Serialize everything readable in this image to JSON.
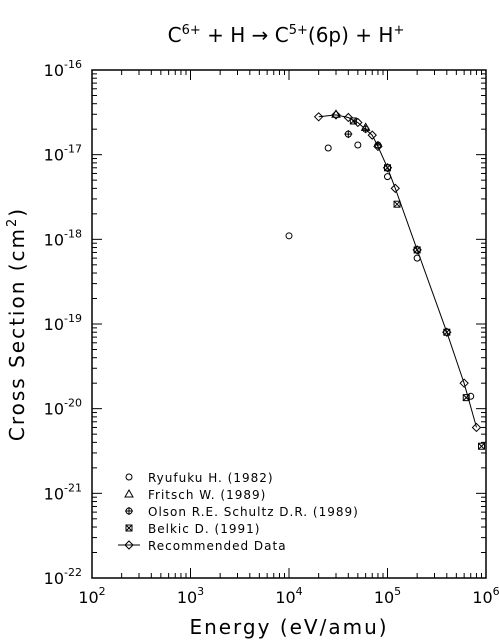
{
  "chart_data": {
    "type": "scatter",
    "title": {
      "base1": "C",
      "sup1": "6+",
      "mid": " + H → C",
      "sup2": "5+",
      "mid2": "(6p) + H",
      "sup3": "+"
    },
    "xlabel": "Energy (eV/amu)",
    "ylabel": {
      "main": "Cross Section (cm",
      "sup": "2",
      "end": ")"
    },
    "x_scale": "log",
    "y_scale": "log",
    "xlim": [
      100,
      1000000
    ],
    "ylim": [
      1e-22,
      1e-16
    ],
    "x_ticks": [
      {
        "value": 100,
        "base": "10",
        "exp": "2"
      },
      {
        "value": 1000,
        "base": "10",
        "exp": "3"
      },
      {
        "value": 10000,
        "base": "10",
        "exp": "4"
      },
      {
        "value": 100000,
        "base": "10",
        "exp": "5"
      },
      {
        "value": 1000000,
        "base": "10",
        "exp": "6"
      }
    ],
    "y_ticks": [
      {
        "value": 1e-22,
        "base": "10",
        "exp": "-22"
      },
      {
        "value": 1e-21,
        "base": "10",
        "exp": "-21"
      },
      {
        "value": 1e-20,
        "base": "10",
        "exp": "-20"
      },
      {
        "value": 1e-19,
        "base": "10",
        "exp": "-19"
      },
      {
        "value": 1e-18,
        "base": "10",
        "exp": "-18"
      },
      {
        "value": 1e-17,
        "base": "10",
        "exp": "-17"
      },
      {
        "value": 1e-16,
        "base": "10",
        "exp": "-16"
      }
    ],
    "legend_position": "bottom-left",
    "series": [
      {
        "name": "Ryufuku H. (1982)",
        "marker": "circle",
        "points": [
          [
            10000,
            1.1e-18
          ],
          [
            25000,
            1.2e-17
          ],
          [
            50000,
            1.3e-17
          ],
          [
            100000,
            5.5e-18
          ],
          [
            200000,
            6e-19
          ],
          [
            700000,
            1.4e-20
          ]
        ]
      },
      {
        "name": "Fritsch W. (1989)",
        "marker": "triangle",
        "points": [
          [
            30000,
            3e-17
          ],
          [
            60000,
            2.1e-17
          ]
        ]
      },
      {
        "name": "Olson R.E. Schultz D.R. (1989)",
        "marker": "plus-circle",
        "points": [
          [
            40000,
            1.75e-17
          ],
          [
            60000,
            2e-17
          ],
          [
            80000,
            1.3e-17
          ]
        ]
      },
      {
        "name": "Belkic D. (1991)",
        "marker": "x-box",
        "points": [
          [
            45000,
            2.5e-17
          ],
          [
            100000,
            7e-18
          ],
          [
            125000,
            2.6e-18
          ],
          [
            200000,
            7.5e-19
          ],
          [
            400000,
            8e-20
          ],
          [
            630000,
            1.35e-20
          ],
          [
            900000,
            3.6e-21
          ]
        ]
      },
      {
        "name": "Recommended Data",
        "marker": "diamond-line",
        "points": [
          [
            20000,
            2.8e-17
          ],
          [
            30000,
            2.95e-17
          ],
          [
            40000,
            2.75e-17
          ],
          [
            50000,
            2.4e-17
          ],
          [
            70000,
            1.7e-17
          ],
          [
            80000,
            1.25e-17
          ],
          [
            100000,
            7e-18
          ],
          [
            120000,
            4e-18
          ],
          [
            200000,
            7.5e-19
          ],
          [
            400000,
            8e-20
          ],
          [
            600000,
            2e-20
          ],
          [
            800000,
            6e-21
          ]
        ]
      }
    ]
  }
}
